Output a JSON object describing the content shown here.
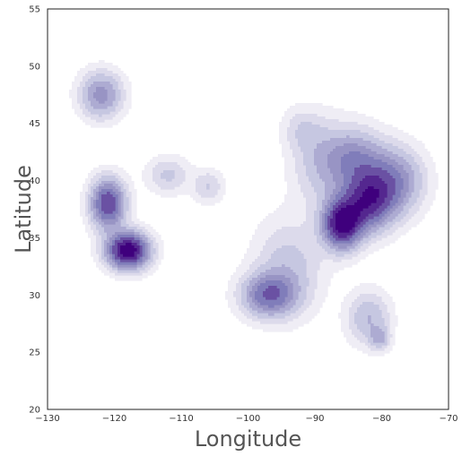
{
  "chart_data": {
    "type": "kde-contour",
    "title": "",
    "xlabel": "Longitude",
    "ylabel": "Latitude",
    "xlim": [
      -130,
      -70
    ],
    "ylim": [
      20,
      55
    ],
    "xticks": [
      -130,
      -120,
      -110,
      -100,
      -90,
      -80,
      -70
    ],
    "xtick_labels": [
      "−130",
      "−120",
      "−110",
      "−100",
      "−90",
      "−80",
      "−70"
    ],
    "yticks": [
      20,
      25,
      30,
      35,
      40,
      45,
      50,
      55
    ],
    "ytick_labels": [
      "20",
      "25",
      "30",
      "35",
      "40",
      "45",
      "50",
      "55"
    ],
    "grid": false,
    "colormap": "Purples",
    "colors": {
      "levels": [
        "#efedf5",
        "#dcdaeb",
        "#c6c7e1",
        "#adabd2",
        "#9894c4",
        "#807dba",
        "#6a51a3",
        "#54278f",
        "#3f007d"
      ],
      "frame": "#222222"
    },
    "density_centers": [
      {
        "x": -122.0,
        "y": 47.5,
        "sx": 2.2,
        "sy": 1.4,
        "w": 0.45
      },
      {
        "x": -121.0,
        "y": 38.0,
        "sx": 1.8,
        "sy": 1.5,
        "w": 0.75
      },
      {
        "x": -118.0,
        "y": 33.9,
        "sx": 2.2,
        "sy": 1.1,
        "w": 1.0
      },
      {
        "x": -112.0,
        "y": 40.5,
        "sx": 2.2,
        "sy": 1.1,
        "w": 0.22
      },
      {
        "x": -106.0,
        "y": 39.5,
        "sx": 1.6,
        "sy": 1.0,
        "w": 0.2
      },
      {
        "x": -97.0,
        "y": 30.0,
        "sx": 2.8,
        "sy": 1.3,
        "w": 0.55
      },
      {
        "x": -94.0,
        "y": 32.5,
        "sx": 3.5,
        "sy": 2.8,
        "w": 0.25
      },
      {
        "x": -86.0,
        "y": 36.2,
        "sx": 2.0,
        "sy": 1.5,
        "w": 0.9
      },
      {
        "x": -82.0,
        "y": 38.2,
        "sx": 2.6,
        "sy": 1.8,
        "w": 0.7
      },
      {
        "x": -78.0,
        "y": 40.0,
        "sx": 3.0,
        "sy": 2.0,
        "w": 0.45
      },
      {
        "x": -84.0,
        "y": 42.0,
        "sx": 3.0,
        "sy": 1.8,
        "w": 0.4
      },
      {
        "x": -89.0,
        "y": 41.5,
        "sx": 3.0,
        "sy": 2.6,
        "w": 0.25
      },
      {
        "x": -92.0,
        "y": 44.5,
        "sx": 2.0,
        "sy": 1.3,
        "w": 0.15
      },
      {
        "x": -82.0,
        "y": 28.0,
        "sx": 2.2,
        "sy": 1.6,
        "w": 0.3
      },
      {
        "x": -80.3,
        "y": 26.2,
        "sx": 1.0,
        "sy": 0.7,
        "w": 0.25
      }
    ]
  }
}
